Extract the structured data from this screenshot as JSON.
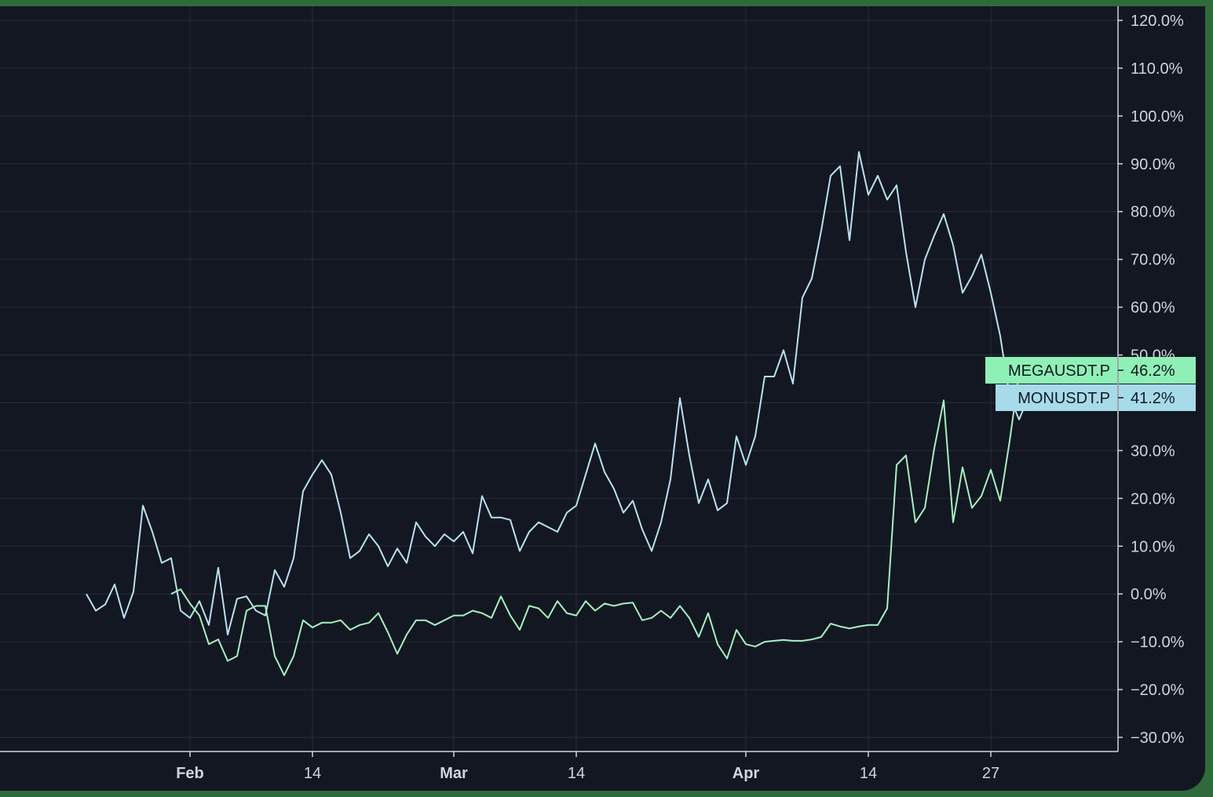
{
  "chart_data": {
    "type": "line",
    "title": "",
    "xlabel": "",
    "ylabel": "",
    "ylim": [
      -30,
      120
    ],
    "y_ticks": [
      "120.0%",
      "110.0%",
      "100.0%",
      "90.0%",
      "80.0%",
      "70.0%",
      "60.0%",
      "50.0%",
      "30.0%",
      "20.0%",
      "10.0%",
      "0.0%",
      "−10.0%",
      "−20.0%",
      "−30.0%"
    ],
    "y_tick_values": [
      120,
      110,
      100,
      90,
      80,
      70,
      60,
      50,
      30,
      20,
      10,
      0,
      -10,
      -20,
      -30
    ],
    "x_ticks": [
      {
        "label": "Feb",
        "day": 11,
        "bold": true
      },
      {
        "label": "14",
        "day": 24,
        "bold": false
      },
      {
        "label": "Mar",
        "day": 39,
        "bold": true
      },
      {
        "label": "14",
        "day": 52,
        "bold": false
      },
      {
        "label": "Apr",
        "day": 70,
        "bold": true
      },
      {
        "label": "14",
        "day": 83,
        "bold": false
      },
      {
        "label": "27",
        "day": 96,
        "bold": false
      }
    ],
    "x_range_days": [
      -9,
      110
    ],
    "grid": true,
    "colors": {
      "background": "#131722",
      "grid": "#2a2e39",
      "text": "#d1d4dc",
      "series_blue": "#b8e2ee",
      "series_green": "#a8f0c0",
      "label_green": "#8ff0b6",
      "label_blue": "#a7dbe9"
    },
    "series": [
      {
        "name": "MONUSDT.P",
        "color": "#b8e2ee",
        "last_label": "41.2%",
        "start_day": 0,
        "values": [
          0.0,
          -3.5,
          -2.2,
          2.0,
          -5.0,
          0.5,
          18.5,
          13.0,
          6.5,
          7.5,
          -3.5,
          -5.0,
          -1.5,
          -6.5,
          5.5,
          -8.5,
          -1.0,
          -0.5,
          -3.5,
          -4.5,
          5.0,
          1.5,
          7.5,
          21.5,
          25.0,
          28.0,
          25.0,
          17.0,
          7.5,
          9.0,
          12.5,
          10.0,
          5.8,
          9.5,
          6.5,
          15.0,
          12.0,
          10.0,
          12.5,
          11.0,
          13.0,
          8.5,
          20.5,
          16.0,
          16.0,
          15.5,
          9.0,
          13.0,
          15.0,
          14.0,
          13.0,
          17.0,
          18.5,
          25.0,
          31.5,
          25.5,
          22.0,
          17.0,
          19.5,
          13.5,
          9.0,
          15.0,
          24.0,
          41.0,
          29.0,
          19.0,
          24.0,
          17.5,
          19.0,
          33.0,
          27.0,
          33.0,
          45.5,
          45.5,
          51.0,
          44.0,
          62.0,
          66.0,
          76.0,
          87.5,
          89.5,
          74.0,
          92.5,
          83.5,
          87.5,
          82.5,
          85.5,
          71.5,
          60.0,
          70.0,
          75.0,
          79.5,
          73.0,
          63.0,
          66.5,
          71.0,
          63.0,
          54.0,
          41.2,
          36.5,
          41.2
        ]
      },
      {
        "name": "MEGAUSDT.P",
        "color": "#a8f0c0",
        "last_label": "46.2%",
        "start_day": 9,
        "values": [
          0.0,
          1.0,
          -2.0,
          -4.5,
          -10.5,
          -9.5,
          -14.0,
          -13.0,
          -3.5,
          -2.5,
          -2.5,
          -13.0,
          -17.0,
          -13.0,
          -5.5,
          -7.0,
          -6.0,
          -6.0,
          -5.5,
          -7.5,
          -6.5,
          -6.0,
          -4.0,
          -8.0,
          -12.5,
          -8.5,
          -5.5,
          -5.5,
          -6.5,
          -5.5,
          -4.5,
          -4.5,
          -3.5,
          -4.0,
          -5.0,
          -0.5,
          -4.5,
          -7.5,
          -2.5,
          -3.0,
          -5.0,
          -1.5,
          -4.0,
          -4.5,
          -1.5,
          -3.5,
          -2.0,
          -2.5,
          -2.0,
          -1.8,
          -5.5,
          -5.0,
          -3.5,
          -5.0,
          -2.5,
          -5.0,
          -9.0,
          -4.0,
          -10.5,
          -13.5,
          -7.5,
          -10.5,
          -11.0,
          -10.0,
          -9.8,
          -9.6,
          -9.8,
          -9.8,
          -9.5,
          -9.0,
          -6.2,
          -6.8,
          -7.2,
          -6.8,
          -6.5,
          -6.5,
          -3.0,
          27.0,
          29.0,
          15.0,
          18.0,
          30.5,
          40.5,
          15.0,
          26.5,
          18.0,
          20.5,
          26.0,
          19.5,
          32.0,
          46.2
        ]
      }
    ]
  }
}
